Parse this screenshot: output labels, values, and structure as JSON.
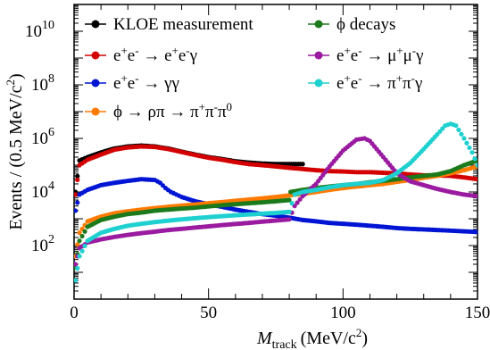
{
  "chart_data": {
    "type": "scatter",
    "x_axis": {
      "label_main": "M",
      "label_sub": "track",
      "label_unit": "(MeV/c",
      "label_unit_sup": "2",
      "label_unit_close": ")",
      "range": [
        0,
        150
      ],
      "ticks": [
        {
          "value": 0,
          "label": "0"
        },
        {
          "value": 50,
          "label": "50"
        },
        {
          "value": 100,
          "label": "100"
        },
        {
          "value": 150,
          "label": "150"
        }
      ]
    },
    "y_axis": {
      "label_main": "Events / (0.5 MeV/c",
      "label_sup": "2",
      "label_close": ")",
      "scale": "log",
      "range": [
        1,
        100000000000
      ],
      "ticks": [
        {
          "value": 100,
          "base": "10",
          "exp": "2"
        },
        {
          "value": 10000,
          "base": "10",
          "exp": "4"
        },
        {
          "value": 1000000,
          "base": "10",
          "exp": "6"
        },
        {
          "value": 100000000,
          "base": "10",
          "exp": "8"
        },
        {
          "value": 10000000000,
          "base": "10",
          "exp": "10"
        }
      ]
    },
    "legend_position": "top",
    "series": [
      {
        "name": "KLOE measurement",
        "color": "#000000",
        "legend": "KLOE measurement",
        "points": [
          [
            0.5,
            10000
          ],
          [
            2,
            150000
          ],
          [
            5,
            200000
          ],
          [
            10,
            300000
          ],
          [
            15,
            420000
          ],
          [
            20,
            500000
          ],
          [
            25,
            540000
          ],
          [
            30,
            500000
          ],
          [
            35,
            420000
          ],
          [
            40,
            320000
          ],
          [
            45,
            250000
          ],
          [
            50,
            200000
          ],
          [
            55,
            170000
          ],
          [
            60,
            140000
          ],
          [
            65,
            125000
          ],
          [
            70,
            115000
          ],
          [
            75,
            110000
          ],
          [
            80,
            110000
          ],
          [
            85,
            110000
          ]
        ]
      },
      {
        "name": "ee-eeg",
        "color": "#d40000",
        "legend_parts": [
          "e",
          "+",
          "e",
          "-",
          " → e",
          "+",
          "e",
          "-",
          "γ"
        ],
        "points": [
          [
            0.5,
            8000
          ],
          [
            2,
            100000
          ],
          [
            5,
            160000
          ],
          [
            10,
            250000
          ],
          [
            15,
            380000
          ],
          [
            20,
            460000
          ],
          [
            25,
            500000
          ],
          [
            30,
            480000
          ],
          [
            35,
            400000
          ],
          [
            40,
            310000
          ],
          [
            45,
            240000
          ],
          [
            50,
            190000
          ],
          [
            55,
            160000
          ],
          [
            60,
            130000
          ],
          [
            65,
            110000
          ],
          [
            70,
            100000
          ],
          [
            75,
            90000
          ],
          [
            80,
            80000
          ],
          [
            85,
            72000
          ],
          [
            90,
            65000
          ],
          [
            95,
            60000
          ],
          [
            100,
            58000
          ],
          [
            105,
            55000
          ],
          [
            110,
            55000
          ],
          [
            115,
            52000
          ],
          [
            120,
            50000
          ],
          [
            125,
            45000
          ],
          [
            130,
            42000
          ],
          [
            135,
            42000
          ],
          [
            140,
            40000
          ],
          [
            145,
            35000
          ],
          [
            150,
            30000
          ]
        ]
      },
      {
        "name": "ee-gg",
        "color": "#0015d4",
        "legend_parts": [
          "e",
          "+",
          "e",
          "-",
          " → γγ"
        ],
        "points": [
          [
            0.5,
            2000
          ],
          [
            2,
            8000
          ],
          [
            5,
            12000
          ],
          [
            10,
            18000
          ],
          [
            15,
            22000
          ],
          [
            20,
            26000
          ],
          [
            25,
            30000
          ],
          [
            30,
            28000
          ],
          [
            32,
            22000
          ],
          [
            34,
            14000
          ],
          [
            36,
            10000
          ],
          [
            40,
            6500
          ],
          [
            45,
            4500
          ],
          [
            50,
            3500
          ],
          [
            55,
            2800
          ],
          [
            60,
            2200
          ],
          [
            65,
            1800
          ],
          [
            70,
            1500
          ],
          [
            75,
            1300
          ],
          [
            80,
            1100
          ],
          [
            85,
            900
          ],
          [
            90,
            800
          ],
          [
            95,
            700
          ],
          [
            100,
            650
          ],
          [
            105,
            600
          ],
          [
            110,
            550
          ],
          [
            115,
            500
          ],
          [
            120,
            450
          ],
          [
            125,
            420
          ],
          [
            130,
            400
          ],
          [
            135,
            380
          ],
          [
            140,
            360
          ],
          [
            145,
            340
          ],
          [
            150,
            320
          ]
        ]
      },
      {
        "name": "phi-rhopi",
        "color": "#ff7a00",
        "legend_parts": [
          "ϕ → ρπ → π",
          "+",
          "π",
          "-",
          "π",
          "0"
        ],
        "points": [
          [
            0.5,
            40
          ],
          [
            2,
            300
          ],
          [
            5,
            800
          ],
          [
            10,
            1200
          ],
          [
            15,
            1600
          ],
          [
            20,
            1900
          ],
          [
            25,
            2200
          ],
          [
            30,
            2500
          ],
          [
            35,
            2800
          ],
          [
            40,
            3100
          ],
          [
            45,
            3400
          ],
          [
            50,
            3800
          ],
          [
            55,
            4200
          ],
          [
            60,
            4700
          ],
          [
            65,
            5200
          ],
          [
            70,
            5800
          ],
          [
            75,
            6500
          ],
          [
            80,
            7500
          ],
          [
            85,
            8500
          ],
          [
            90,
            10000
          ],
          [
            95,
            12000
          ],
          [
            100,
            14000
          ],
          [
            105,
            16000
          ],
          [
            110,
            18000
          ],
          [
            115,
            20000
          ],
          [
            120,
            24000
          ],
          [
            125,
            28000
          ],
          [
            130,
            34000
          ],
          [
            135,
            40000
          ],
          [
            140,
            50000
          ],
          [
            145,
            65000
          ],
          [
            150,
            90000
          ]
        ]
      },
      {
        "name": "phi-decays",
        "color": "#1b7a1b",
        "legend": "ϕ decays",
        "points": [
          [
            0.5,
            15
          ],
          [
            2,
            150
          ],
          [
            5,
            500
          ],
          [
            10,
            900
          ],
          [
            15,
            1200
          ],
          [
            20,
            1500
          ],
          [
            25,
            1700
          ],
          [
            30,
            2000
          ],
          [
            35,
            2200
          ],
          [
            40,
            2400
          ],
          [
            45,
            2600
          ],
          [
            50,
            2900
          ],
          [
            55,
            3200
          ],
          [
            60,
            3500
          ],
          [
            65,
            3800
          ],
          [
            70,
            4100
          ],
          [
            75,
            4500
          ],
          [
            80,
            5000
          ],
          [
            80.5,
            10000
          ],
          [
            85,
            12000
          ],
          [
            90,
            14000
          ],
          [
            95,
            16000
          ],
          [
            100,
            18000
          ],
          [
            105,
            20000
          ],
          [
            110,
            23000
          ],
          [
            115,
            26000
          ],
          [
            120,
            30000
          ],
          [
            125,
            35000
          ],
          [
            130,
            40000
          ],
          [
            135,
            45000
          ],
          [
            140,
            60000
          ],
          [
            145,
            100000
          ],
          [
            150,
            150000
          ]
        ]
      },
      {
        "name": "ee-mumug",
        "color": "#9a1aa0",
        "legend_parts": [
          "e",
          "+",
          "e",
          "-",
          " → μ",
          "+",
          "μ",
          "-",
          "γ"
        ],
        "points": [
          [
            0.5,
            20
          ],
          [
            2,
            80
          ],
          [
            5,
            130
          ],
          [
            10,
            170
          ],
          [
            15,
            210
          ],
          [
            20,
            250
          ],
          [
            25,
            290
          ],
          [
            30,
            330
          ],
          [
            35,
            380
          ],
          [
            40,
            420
          ],
          [
            45,
            470
          ],
          [
            50,
            520
          ],
          [
            55,
            580
          ],
          [
            60,
            640
          ],
          [
            65,
            700
          ],
          [
            70,
            780
          ],
          [
            75,
            860
          ],
          [
            80,
            950
          ],
          [
            82,
            3000
          ],
          [
            85,
            7000
          ],
          [
            90,
            20000
          ],
          [
            95,
            90000
          ],
          [
            100,
            350000
          ],
          [
            105,
            900000
          ],
          [
            108,
            1000000
          ],
          [
            110,
            800000
          ],
          [
            115,
            200000
          ],
          [
            120,
            50000
          ],
          [
            125,
            25000
          ],
          [
            130,
            18000
          ],
          [
            135,
            13000
          ],
          [
            140,
            10000
          ],
          [
            145,
            8000
          ],
          [
            150,
            7000
          ]
        ]
      },
      {
        "name": "ee-pipig",
        "color": "#1fd0d0",
        "legend_parts": [
          "e",
          "+",
          "e",
          "-",
          " → π",
          "+",
          "π",
          "-",
          "γ"
        ],
        "points": [
          [
            0.5,
            5
          ],
          [
            2,
            40
          ],
          [
            5,
            150
          ],
          [
            10,
            300
          ],
          [
            15,
            420
          ],
          [
            20,
            550
          ],
          [
            25,
            650
          ],
          [
            30,
            750
          ],
          [
            35,
            850
          ],
          [
            40,
            950
          ],
          [
            45,
            1050
          ],
          [
            50,
            1150
          ],
          [
            55,
            1250
          ],
          [
            60,
            1350
          ],
          [
            65,
            1450
          ],
          [
            70,
            1550
          ],
          [
            75,
            1650
          ],
          [
            80,
            1800
          ],
          [
            82,
            8000
          ],
          [
            85,
            10000
          ],
          [
            90,
            12000
          ],
          [
            95,
            15000
          ],
          [
            100,
            18000
          ],
          [
            105,
            20000
          ],
          [
            110,
            22000
          ],
          [
            115,
            28000
          ],
          [
            120,
            50000
          ],
          [
            125,
            120000
          ],
          [
            130,
            400000
          ],
          [
            135,
            1400000
          ],
          [
            138,
            3000000
          ],
          [
            140,
            3500000
          ],
          [
            142,
            3000000
          ],
          [
            145,
            1000000
          ],
          [
            148,
            300000
          ],
          [
            150,
            100000
          ]
        ]
      }
    ]
  }
}
